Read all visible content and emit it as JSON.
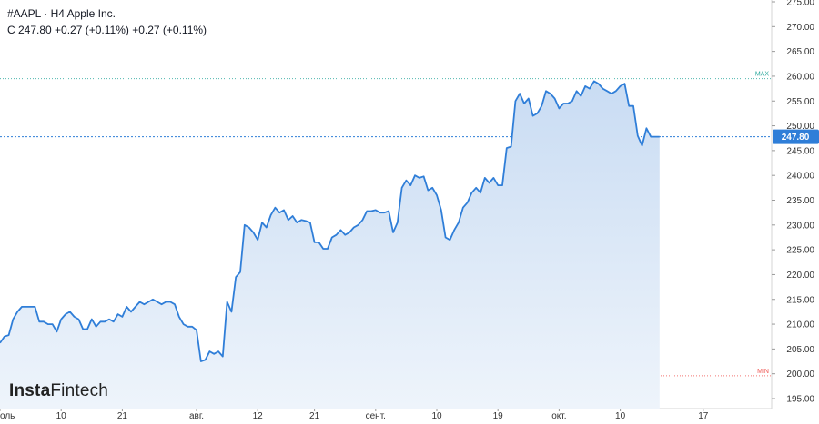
{
  "header": {
    "symbol": "#AAPL",
    "separator": "·",
    "timeframe": "H4",
    "company": "Apple Inc.",
    "ohlc_line": "C 247.80 +0.27 (+0.11%) +0.27 (+0.11%)"
  },
  "brand": {
    "part1": "Insta",
    "part2": "Fintech"
  },
  "colors": {
    "line": "#2f7ed8",
    "fill_top": "#c9dcf3",
    "fill_bottom": "#eef4fb",
    "last_price": "#2f7ed8",
    "max_line": "#26a69a",
    "min_line": "#ef5350"
  },
  "chart_data": {
    "type": "area",
    "title": "",
    "xlabel": "",
    "ylabel": "",
    "ylim": [
      195,
      275
    ],
    "y_ticks": [
      195,
      200,
      205,
      210,
      215,
      220,
      225,
      230,
      235,
      240,
      245,
      250,
      255,
      260,
      265,
      270,
      275
    ],
    "y_tick_labels": [
      "195.00",
      "200.00",
      "205.00",
      "210.00",
      "215.00",
      "220.00",
      "225.00",
      "230.00",
      "235.00",
      "240.00",
      "245.00",
      "250.00",
      "255.00",
      "260.00",
      "265.00",
      "270.00",
      "275.00"
    ],
    "x_ticks": [
      {
        "label": "оль",
        "index": 0
      },
      {
        "label": "10",
        "index": 14
      },
      {
        "label": "21",
        "index": 28
      },
      {
        "label": "авг.",
        "index": 45
      },
      {
        "label": "12",
        "index": 59
      },
      {
        "label": "21",
        "index": 72
      },
      {
        "label": "сент.",
        "index": 86
      },
      {
        "label": "10",
        "index": 100
      },
      {
        "label": "19",
        "index": 114
      },
      {
        "label": "окт.",
        "index": 128
      },
      {
        "label": "10",
        "index": 142
      },
      {
        "label": "17",
        "index": 161
      }
    ],
    "x_last_index": 161,
    "last_price": {
      "value": 247.8,
      "label": "247.80"
    },
    "max_level": {
      "value": 259.5,
      "label": "MAX"
    },
    "min_level": {
      "value": 199.6,
      "label": "MIN"
    },
    "series": [
      {
        "values": [
          206.2,
          207.5,
          207.8,
          211.0,
          212.5,
          213.5,
          213.5,
          213.5,
          213.5,
          210.5,
          210.5,
          210.0,
          210.0,
          208.5,
          211.0,
          212.0,
          212.5,
          211.5,
          211.0,
          209.0,
          209.0,
          211.0,
          209.5,
          210.5,
          210.5,
          211.0,
          210.5,
          212.0,
          211.5,
          213.5,
          212.5,
          213.5,
          214.5,
          214.0,
          214.5,
          215.0,
          214.5,
          214.0,
          214.5,
          214.5,
          214.0,
          211.5,
          210.0,
          209.5,
          209.5,
          208.8,
          202.5,
          202.8,
          204.5,
          204.0,
          204.5,
          203.5,
          214.5,
          212.5,
          219.5,
          220.5,
          230.0,
          229.5,
          228.5,
          227.0,
          230.5,
          229.5,
          232.0,
          233.5,
          232.5,
          233.0,
          231.0,
          231.8,
          230.5,
          231.0,
          230.8,
          230.5,
          226.5,
          226.5,
          225.2,
          225.2,
          227.5,
          228.0,
          229.0,
          228.0,
          228.5,
          229.5,
          230.0,
          231.0,
          232.8,
          232.8,
          233.0,
          232.5,
          232.5,
          232.8,
          228.5,
          230.5,
          237.5,
          239.0,
          238.0,
          240.0,
          239.5,
          239.8,
          237.0,
          237.5,
          236.0,
          233.0,
          227.5,
          227.0,
          229.0,
          230.5,
          233.5,
          234.5,
          236.5,
          237.5,
          236.5,
          239.5,
          238.5,
          239.5,
          238.0,
          238.0,
          245.5,
          245.8,
          255.0,
          256.5,
          254.5,
          255.5,
          252.0,
          252.5,
          254.0,
          257.0,
          256.5,
          255.5,
          253.5,
          254.5,
          254.5,
          255.0,
          257.0,
          256.0,
          258.0,
          257.5,
          259.0,
          258.5,
          257.5,
          257.0,
          256.5,
          257.0,
          258.0,
          258.5,
          254.0,
          254.0,
          248.0,
          246.0,
          249.5,
          247.8,
          247.8,
          247.8
        ]
      }
    ]
  }
}
